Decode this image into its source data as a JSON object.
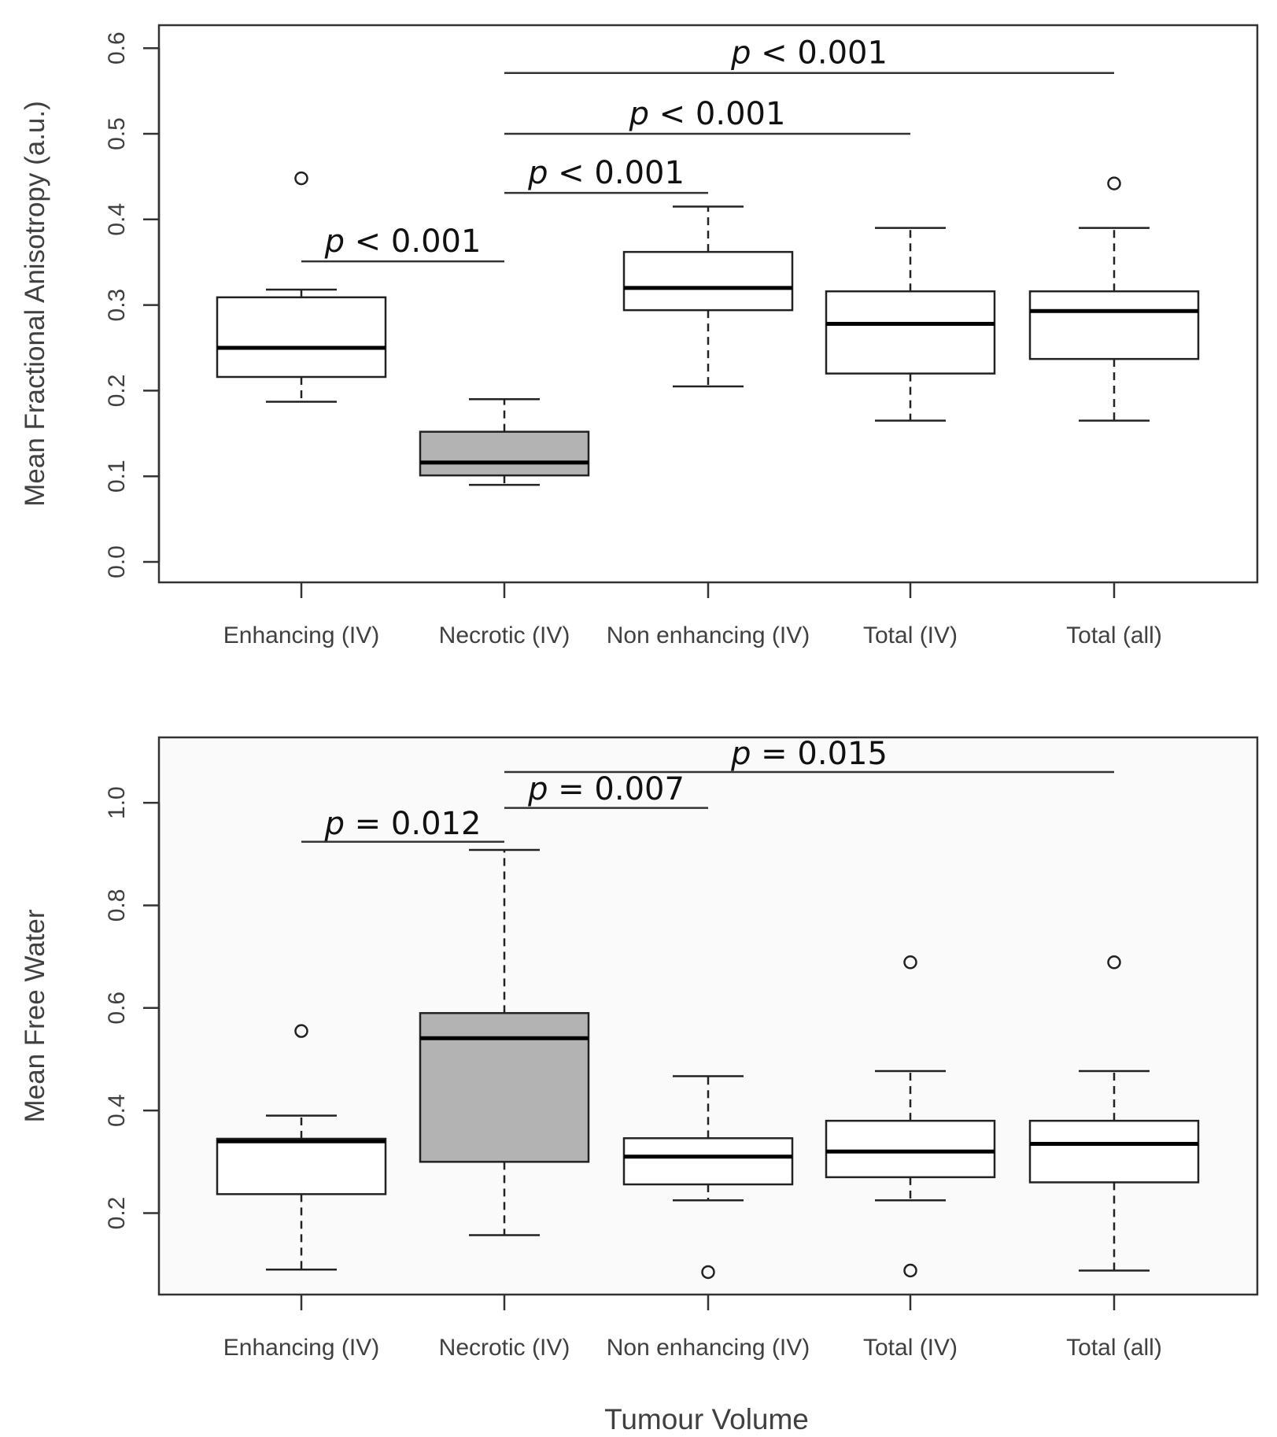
{
  "x_title": "Tumour Volume",
  "chart_data": [
    {
      "type": "boxplot",
      "ylabel": "Mean Fractional Anisotropy (a.u.)",
      "ylim": [
        0.0,
        0.6
      ],
      "yticks": [
        "0.0",
        "0.1",
        "0.2",
        "0.3",
        "0.4",
        "0.5",
        "0.6"
      ],
      "categories": [
        "Enhancing (IV)",
        "Necrotic (IV)",
        "Non enhancing (IV)",
        "Total (IV)",
        "Total (all)"
      ],
      "boxes": [
        {
          "name": "Enhancing (IV)",
          "min": 0.187,
          "q1": 0.216,
          "median": 0.25,
          "q3": 0.309,
          "max": 0.318,
          "outliers": [
            0.448
          ],
          "fill": "#ffffff"
        },
        {
          "name": "Necrotic (IV)",
          "min": 0.09,
          "q1": 0.101,
          "median": 0.116,
          "q3": 0.152,
          "max": 0.19,
          "outliers": [],
          "fill": "#b3b3b3"
        },
        {
          "name": "Non enhancing (IV)",
          "min": 0.205,
          "q1": 0.294,
          "median": 0.32,
          "q3": 0.362,
          "max": 0.415,
          "outliers": [],
          "fill": "#ffffff"
        },
        {
          "name": "Total (IV)",
          "min": 0.165,
          "q1": 0.22,
          "median": 0.278,
          "q3": 0.316,
          "max": 0.39,
          "outliers": [],
          "fill": "#ffffff"
        },
        {
          "name": "Total (all)",
          "min": 0.165,
          "q1": 0.237,
          "median": 0.293,
          "q3": 0.316,
          "max": 0.39,
          "outliers": [
            0.442
          ],
          "fill": "#ffffff"
        }
      ],
      "comparisons": [
        {
          "from": 0,
          "to": 1,
          "y": 0.351,
          "label": "< 0.001",
          "text_y": 0.375
        },
        {
          "from": 1,
          "to": 2,
          "y": 0.431,
          "label": "< 0.001",
          "text_y": 0.455
        },
        {
          "from": 1,
          "to": 3,
          "y": 0.5,
          "label": "< 0.001",
          "text_y": 0.524
        },
        {
          "from": 1,
          "to": 4,
          "y": 0.571,
          "label": "< 0.001",
          "text_y": 0.595
        }
      ]
    },
    {
      "type": "boxplot",
      "ylabel": "Mean Free Water",
      "ylim": [
        0.06,
        1.1
      ],
      "yticks": [
        "0.2",
        "0.4",
        "0.6",
        "0.8",
        "1.0"
      ],
      "categories": [
        "Enhancing (IV)",
        "Necrotic (IV)",
        "Non enhancing (IV)",
        "Total (IV)",
        "Total (all)"
      ],
      "boxes": [
        {
          "name": "Enhancing (IV)",
          "min": 0.09,
          "q1": 0.237,
          "median": 0.34,
          "q3": 0.345,
          "max": 0.39,
          "outliers": [
            0.555
          ],
          "fill": "#ffffff"
        },
        {
          "name": "Necrotic (IV)",
          "min": 0.157,
          "q1": 0.3,
          "median": 0.541,
          "q3": 0.59,
          "max": 0.908,
          "outliers": [],
          "fill": "#b3b3b3"
        },
        {
          "name": "Non enhancing (IV)",
          "min": 0.225,
          "q1": 0.256,
          "median": 0.31,
          "q3": 0.346,
          "max": 0.467,
          "outliers": [
            0.085
          ],
          "fill": "#ffffff"
        },
        {
          "name": "Total (IV)",
          "min": 0.225,
          "q1": 0.27,
          "median": 0.32,
          "q3": 0.38,
          "max": 0.477,
          "outliers": [
            0.689,
            0.088
          ],
          "fill": "#ffffff"
        },
        {
          "name": "Total (all)",
          "min": 0.088,
          "q1": 0.26,
          "median": 0.335,
          "q3": 0.38,
          "max": 0.477,
          "outliers": [
            0.689
          ],
          "fill": "#ffffff"
        }
      ],
      "comparisons": [
        {
          "from": 0,
          "to": 1,
          "y": 0.924,
          "label": "= 0.012",
          "text_y": 0.96
        },
        {
          "from": 1,
          "to": 2,
          "y": 0.99,
          "label": "= 0.007",
          "text_y": 1.028
        },
        {
          "from": 1,
          "to": 4,
          "y": 1.06,
          "label": "= 0.015",
          "text_y": 1.097
        }
      ]
    }
  ]
}
